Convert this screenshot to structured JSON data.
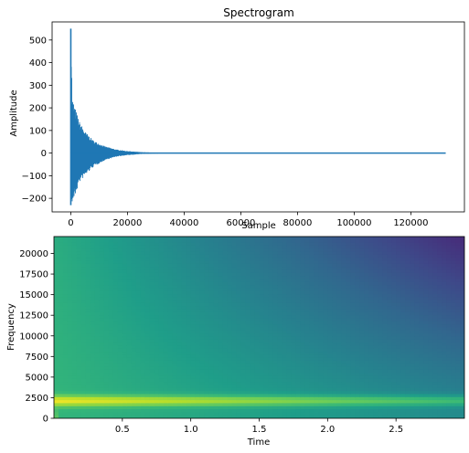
{
  "chart_data": [
    {
      "type": "line",
      "title": "Spectrogram",
      "xlabel": "Sample",
      "ylabel": "Amplitude",
      "xlim": [
        -6600,
        138900
      ],
      "ylim": [
        -260,
        580
      ],
      "xticks": [
        0,
        20000,
        40000,
        60000,
        80000,
        100000,
        120000
      ],
      "xtick_labels": [
        "0",
        "20000",
        "40000",
        "60000",
        "80000",
        "100000",
        "120000"
      ],
      "yticks": [
        -200,
        -100,
        0,
        100,
        200,
        300,
        400,
        500
      ],
      "ytick_labels": [
        "−200",
        "−100",
        "0",
        "100",
        "200",
        "300",
        "400",
        "500"
      ],
      "series_color": "#1f77b4",
      "signal": {
        "length_samples": 132300,
        "peak_positive": 550,
        "peak_negative": -230,
        "envelope": [
          {
            "x": 0,
            "pos": 550,
            "neg": -230
          },
          {
            "x": 500,
            "pos": 245,
            "neg": -225
          },
          {
            "x": 1500,
            "pos": 200,
            "neg": -190
          },
          {
            "x": 3000,
            "pos": 140,
            "neg": -130
          },
          {
            "x": 5000,
            "pos": 95,
            "neg": -100
          },
          {
            "x": 8000,
            "pos": 55,
            "neg": -60
          },
          {
            "x": 12000,
            "pos": 30,
            "neg": -32
          },
          {
            "x": 16000,
            "pos": 16,
            "neg": -16
          },
          {
            "x": 20000,
            "pos": 9,
            "neg": -9
          },
          {
            "x": 25000,
            "pos": 4,
            "neg": -4
          },
          {
            "x": 30000,
            "pos": 2,
            "neg": -2
          },
          {
            "x": 40000,
            "pos": 1,
            "neg": -1
          },
          {
            "x": 132300,
            "pos": 0,
            "neg": 0
          }
        ]
      }
    },
    {
      "type": "heatmap",
      "title": "",
      "xlabel": "Time",
      "ylabel": "Frequency",
      "xlim": [
        0.0,
        3.0
      ],
      "ylim": [
        0,
        22050
      ],
      "xticks": [
        0.5,
        1.0,
        1.5,
        2.0,
        2.5
      ],
      "xtick_labels": [
        "0.5",
        "1.0",
        "1.5",
        "2.0",
        "2.5"
      ],
      "yticks": [
        0,
        2500,
        5000,
        7500,
        10000,
        12500,
        15000,
        17500,
        20000
      ],
      "ytick_labels": [
        "0",
        "2500",
        "5000",
        "7500",
        "10000",
        "12500",
        "15000",
        "17500",
        "20000"
      ],
      "colormap": "viridis",
      "colormap_stops": [
        "#440154",
        "#482878",
        "#3e4989",
        "#31688e",
        "#26828e",
        "#1f9e89",
        "#35b779",
        "#6ece58",
        "#b5de2b",
        "#fde725"
      ],
      "dominant_band_hz": 2100,
      "description_levels": {
        "early_broadband_level": 0.75,
        "band_level_start": 0.98,
        "band_level_end": 0.68,
        "background_high_freq_end_level": 0.0,
        "background_low_freq_end_level": 0.42
      }
    }
  ]
}
